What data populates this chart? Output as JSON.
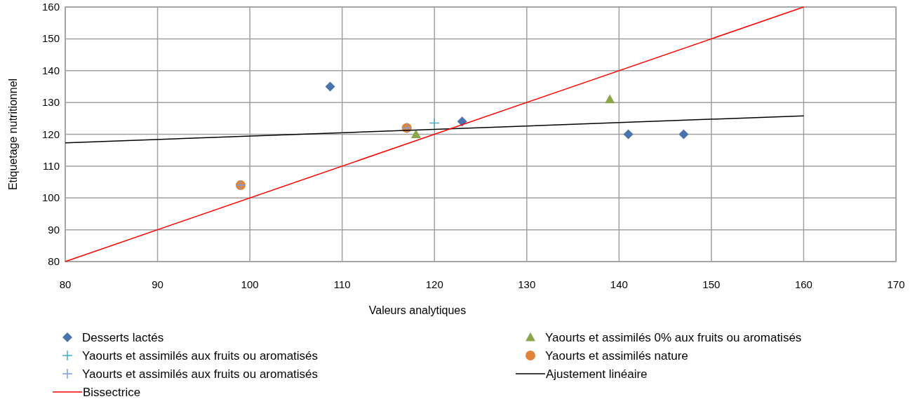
{
  "chart_data": {
    "type": "scatter",
    "xlabel": "Valeurs analytiques",
    "ylabel": "Etiquetage nutritionnel",
    "xlim": [
      80,
      170
    ],
    "ylim": [
      80,
      160
    ],
    "xticks": [
      80,
      90,
      100,
      110,
      120,
      130,
      140,
      150,
      160,
      170
    ],
    "yticks": [
      80,
      90,
      100,
      110,
      120,
      130,
      140,
      150,
      160
    ],
    "grid": true,
    "legend": "bottom",
    "series": [
      {
        "name": "Desserts lactés",
        "color": "#4a73ad",
        "marker": "diamond",
        "x": [
          108.7,
          123,
          141,
          147
        ],
        "values": [
          135,
          124,
          120,
          120
        ]
      },
      {
        "name": "Yaourts et assimilés 0% aux fruits ou aromatisés",
        "color": "#8aa64b",
        "marker": "triangle",
        "x": [
          118,
          139
        ],
        "values": [
          120,
          131
        ]
      },
      {
        "name": "Yaourts et assimilés aux fruits  ou aromatisés",
        "color": "#4bacc6",
        "marker": "cross",
        "x": [
          120
        ],
        "values": [
          123.5
        ]
      },
      {
        "name": "Yaourts et assimilés nature",
        "color": "#e0843c",
        "marker": "circle",
        "x": [
          99,
          117
        ],
        "values": [
          104,
          122
        ]
      },
      {
        "name": "Yaourts et assimilés aux fruits  ou aromatisés",
        "color": "#7f9fd6",
        "marker": "cross",
        "x": [
          99,
          117
        ],
        "values": [
          104,
          122
        ]
      },
      {
        "name": "Ajustement linéaire",
        "type": "line",
        "color": "#000000",
        "marker": "none",
        "x": [
          80,
          160
        ],
        "values": [
          117.3,
          125.8
        ]
      },
      {
        "name": "Bissectrice",
        "type": "line",
        "color": "#ff0000",
        "marker": "none",
        "x": [
          80,
          160
        ],
        "values": [
          80,
          160
        ]
      }
    ]
  }
}
